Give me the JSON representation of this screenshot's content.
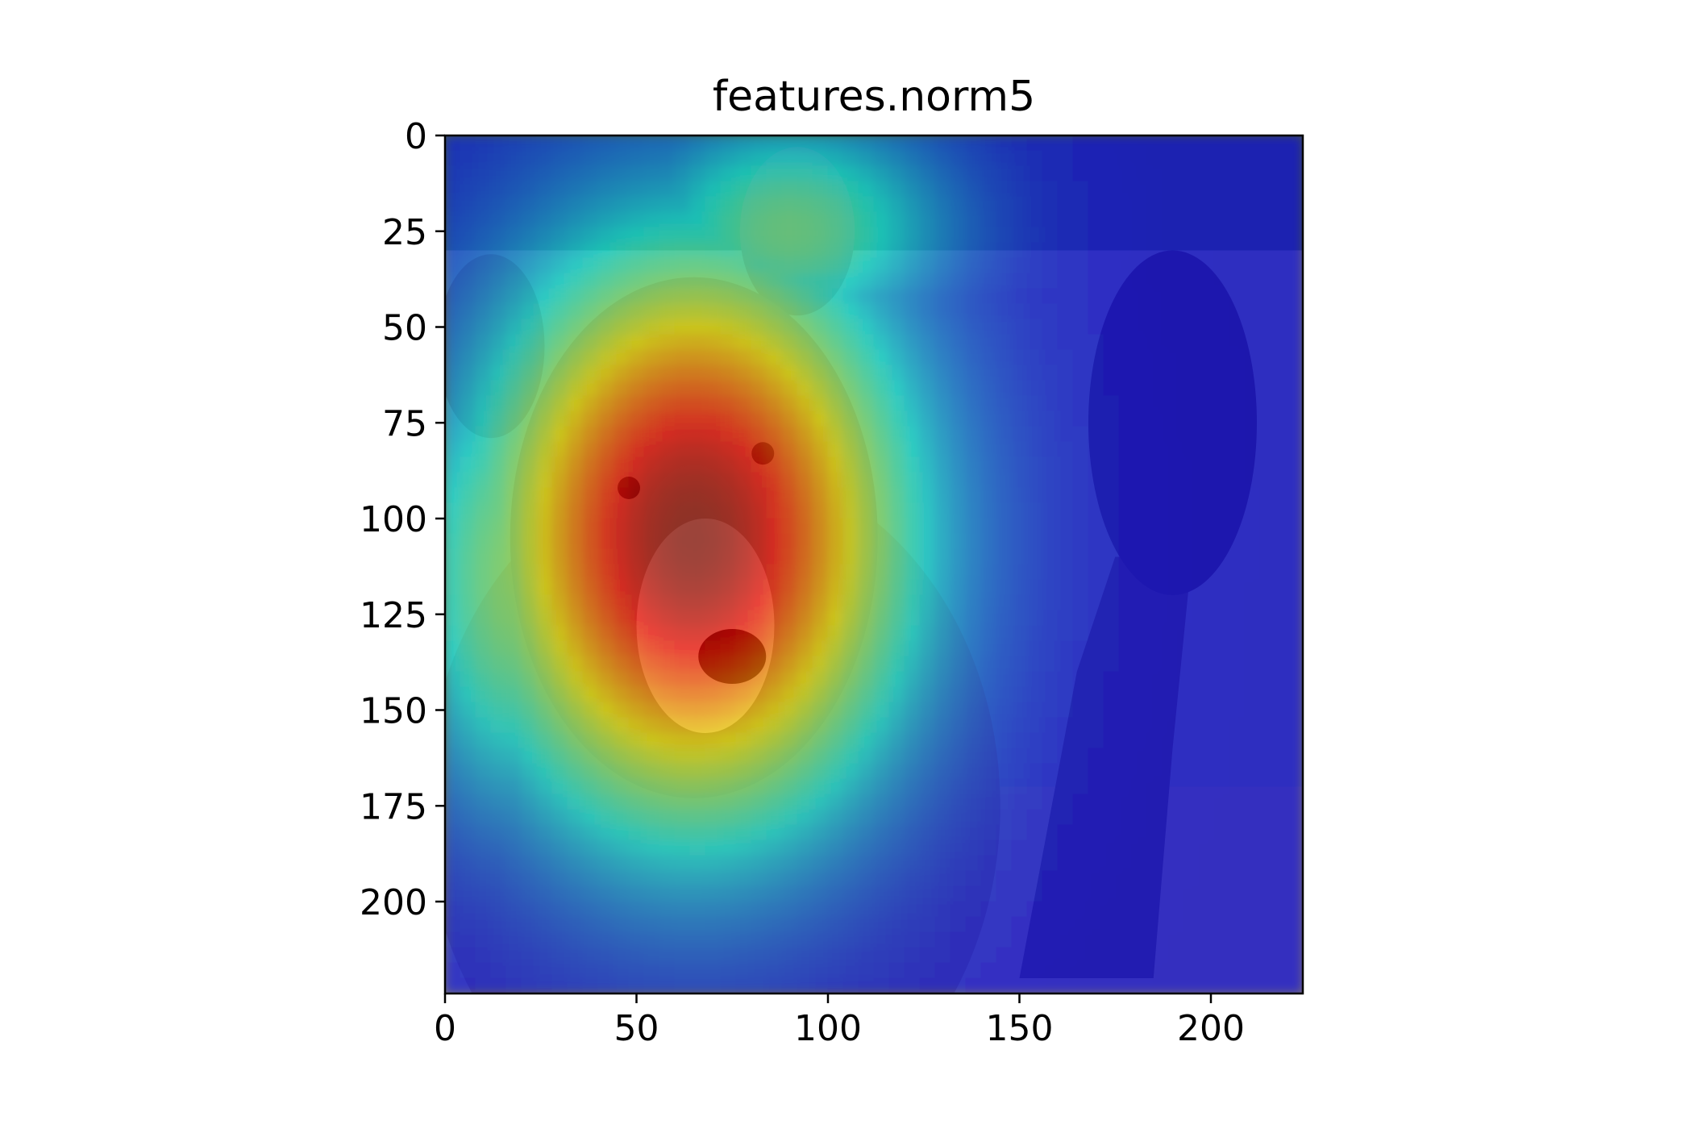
{
  "chart_data": {
    "type": "heatmap",
    "title": "features.norm5",
    "description_kind": "Grad-CAM style activation heatmap overlaid on a photograph of a bear raising its right paw",
    "colormap": "jet",
    "image_size": [
      224,
      224
    ],
    "xlim": [
      0,
      224
    ],
    "ylim": [
      224,
      0
    ],
    "x_ticks": [
      0,
      50,
      100,
      150,
      200
    ],
    "y_ticks": [
      0,
      25,
      50,
      75,
      100,
      125,
      150,
      175,
      200
    ],
    "x_tick_labels": [
      "0",
      "50",
      "100",
      "150",
      "200"
    ],
    "y_tick_labels": [
      "0",
      "25",
      "50",
      "75",
      "100",
      "125",
      "150",
      "175",
      "200"
    ],
    "activation_peak": {
      "x": 65,
      "y": 105,
      "value": 1.0
    },
    "activation_blobs": [
      {
        "cx": 65,
        "cy": 105,
        "sx": 38,
        "sy": 52,
        "weight": 1.0
      },
      {
        "cx": 20,
        "cy": 115,
        "sx": 22,
        "sy": 45,
        "weight": 0.45
      },
      {
        "cx": 90,
        "cy": 25,
        "sx": 30,
        "sy": 22,
        "weight": 0.4
      }
    ]
  }
}
